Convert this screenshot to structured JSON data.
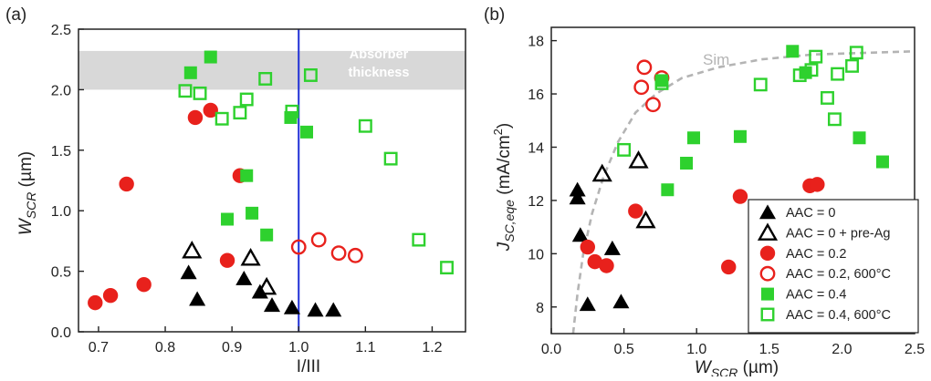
{
  "figure": {
    "panel_a_label": "(a)",
    "panel_b_label": "(b)"
  },
  "colors": {
    "black": "#000000",
    "red": "#e8211c",
    "green": "#2ed12e",
    "blue_line": "#1f2fd6",
    "band": "#d8d8d8",
    "sim": "#b4b4b4"
  },
  "chart_data": [
    {
      "type": "scatter",
      "panel": "(a)",
      "xlabel": "I/III",
      "ylabel_main": "W",
      "ylabel_sub": "SCR",
      "ylabel_unit": " (µm)",
      "xlim": [
        0.67,
        1.25
      ],
      "ylim": [
        0.0,
        2.5
      ],
      "xticks": [
        "0.7",
        "0.8",
        "0.9",
        "1.0",
        "1.1",
        "1.2"
      ],
      "yticks": [
        "0.0",
        "0.5",
        "1.0",
        "1.5",
        "2.0",
        "2.5"
      ],
      "band": {
        "y_from": 2.0,
        "y_to": 2.32,
        "label_line1": "Absorber",
        "label_line2": "thickness"
      },
      "vline": {
        "x": 1.0
      },
      "series": [
        {
          "marker": "filled-triangle",
          "color": "black",
          "points": [
            [
              0.835,
              0.49
            ],
            [
              0.848,
              0.27
            ],
            [
              0.918,
              0.44
            ],
            [
              0.942,
              0.33
            ],
            [
              0.96,
              0.22
            ],
            [
              0.99,
              0.2
            ],
            [
              1.025,
              0.18
            ],
            [
              1.052,
              0.18
            ]
          ]
        },
        {
          "marker": "open-triangle",
          "color": "black",
          "points": [
            [
              0.84,
              0.67
            ],
            [
              0.928,
              0.61
            ],
            [
              0.952,
              0.37
            ]
          ]
        },
        {
          "marker": "filled-circle",
          "color": "red",
          "points": [
            [
              0.695,
              0.24
            ],
            [
              0.718,
              0.3
            ],
            [
              0.742,
              1.22
            ],
            [
              0.768,
              0.39
            ],
            [
              0.845,
              1.77
            ],
            [
              0.868,
              1.83
            ],
            [
              0.893,
              0.59
            ],
            [
              0.912,
              1.29
            ]
          ]
        },
        {
          "marker": "open-circle",
          "color": "red",
          "points": [
            [
              1.0,
              0.7
            ],
            [
              1.03,
              0.76
            ],
            [
              1.06,
              0.65
            ],
            [
              1.085,
              0.63
            ]
          ]
        },
        {
          "marker": "filled-square",
          "color": "green",
          "points": [
            [
              0.838,
              2.14
            ],
            [
              0.868,
              2.27
            ],
            [
              0.893,
              0.93
            ],
            [
              0.922,
              1.29
            ],
            [
              0.93,
              0.98
            ],
            [
              0.952,
              0.8
            ],
            [
              0.988,
              1.77
            ],
            [
              1.012,
              1.65
            ]
          ]
        },
        {
          "marker": "open-square",
          "color": "green",
          "points": [
            [
              0.83,
              1.99
            ],
            [
              0.852,
              1.97
            ],
            [
              0.885,
              1.76
            ],
            [
              0.912,
              1.81
            ],
            [
              0.922,
              1.92
            ],
            [
              0.95,
              2.09
            ],
            [
              0.99,
              1.82
            ],
            [
              1.018,
              2.12
            ],
            [
              1.1,
              1.7
            ],
            [
              1.138,
              1.43
            ],
            [
              1.18,
              0.76
            ],
            [
              1.222,
              0.53
            ]
          ]
        }
      ]
    },
    {
      "type": "scatter",
      "panel": "(b)",
      "xlabel_main": "W",
      "xlabel_sub": "SCR",
      "xlabel_unit": " (µm)",
      "ylabel_main": "J",
      "ylabel_sub": "SC,eqe",
      "ylabel_unit": " (mA/cm",
      "ylabel_sup": "2",
      "ylabel_close": ")",
      "xlim": [
        0.0,
        2.5
      ],
      "ylim": [
        7.0,
        18.5
      ],
      "xticks": [
        "0.0",
        "0.5",
        "1.0",
        "1.5",
        "2.0",
        "2.5"
      ],
      "yticks": [
        "8",
        "10",
        "12",
        "14",
        "16",
        "18"
      ],
      "sim_label": "Sim",
      "sim_curve": [
        [
          0.15,
          7.0
        ],
        [
          0.18,
          8.5
        ],
        [
          0.22,
          10.0
        ],
        [
          0.28,
          11.5
        ],
        [
          0.36,
          12.9
        ],
        [
          0.46,
          14.2
        ],
        [
          0.58,
          15.3
        ],
        [
          0.72,
          16.0
        ],
        [
          0.9,
          16.6
        ],
        [
          1.15,
          17.0
        ],
        [
          1.45,
          17.3
        ],
        [
          1.8,
          17.48
        ],
        [
          2.2,
          17.55
        ],
        [
          2.5,
          17.6
        ]
      ],
      "legend": {
        "position": "bottom-right",
        "entries": [
          "AAC = 0",
          "AAC = 0 + pre-Ag",
          "AAC = 0.2",
          "AAC = 0.2, 600°C",
          "AAC = 0.4",
          "AAC = 0.4, 600°C"
        ]
      },
      "series": [
        {
          "name": "AAC = 0",
          "marker": "filled-triangle",
          "color": "black",
          "points": [
            [
              0.18,
              12.4
            ],
            [
              0.18,
              12.1
            ],
            [
              0.2,
              10.7
            ],
            [
              0.25,
              8.1
            ],
            [
              0.42,
              10.2
            ],
            [
              0.48,
              8.2
            ]
          ]
        },
        {
          "name": "AAC = 0 + pre-Ag",
          "marker": "open-triangle",
          "color": "black",
          "points": [
            [
              0.35,
              13.0
            ],
            [
              0.6,
              13.5
            ],
            [
              0.65,
              11.25
            ]
          ]
        },
        {
          "name": "AAC = 0.2",
          "marker": "filled-circle",
          "color": "red",
          "points": [
            [
              0.25,
              10.25
            ],
            [
              0.3,
              9.7
            ],
            [
              0.38,
              9.55
            ],
            [
              0.58,
              11.6
            ],
            [
              1.22,
              9.5
            ],
            [
              1.3,
              12.15
            ],
            [
              1.78,
              12.55
            ],
            [
              1.83,
              12.6
            ]
          ]
        },
        {
          "name": "AAC = 0.2, 600°C",
          "marker": "open-circle",
          "color": "red",
          "points": [
            [
              0.62,
              16.25
            ],
            [
              0.64,
              17.0
            ],
            [
              0.7,
              15.6
            ],
            [
              0.76,
              16.6
            ]
          ]
        },
        {
          "name": "AAC = 0.4",
          "marker": "filled-square",
          "color": "green",
          "points": [
            [
              0.76,
              16.5
            ],
            [
              0.8,
              12.4
            ],
            [
              0.93,
              13.4
            ],
            [
              0.98,
              14.35
            ],
            [
              1.3,
              14.4
            ],
            [
              1.66,
              17.6
            ],
            [
              1.75,
              16.8
            ],
            [
              2.12,
              14.35
            ],
            [
              2.28,
              13.45
            ]
          ]
        },
        {
          "name": "AAC = 0.4, 600°C",
          "marker": "open-square",
          "color": "green",
          "points": [
            [
              0.5,
              13.9
            ],
            [
              0.76,
              16.4
            ],
            [
              1.44,
              16.35
            ],
            [
              1.71,
              16.7
            ],
            [
              1.79,
              16.9
            ],
            [
              1.82,
              17.4
            ],
            [
              1.9,
              15.85
            ],
            [
              1.95,
              15.05
            ],
            [
              1.97,
              16.75
            ],
            [
              2.07,
              17.05
            ],
            [
              2.1,
              17.55
            ]
          ]
        }
      ]
    }
  ]
}
